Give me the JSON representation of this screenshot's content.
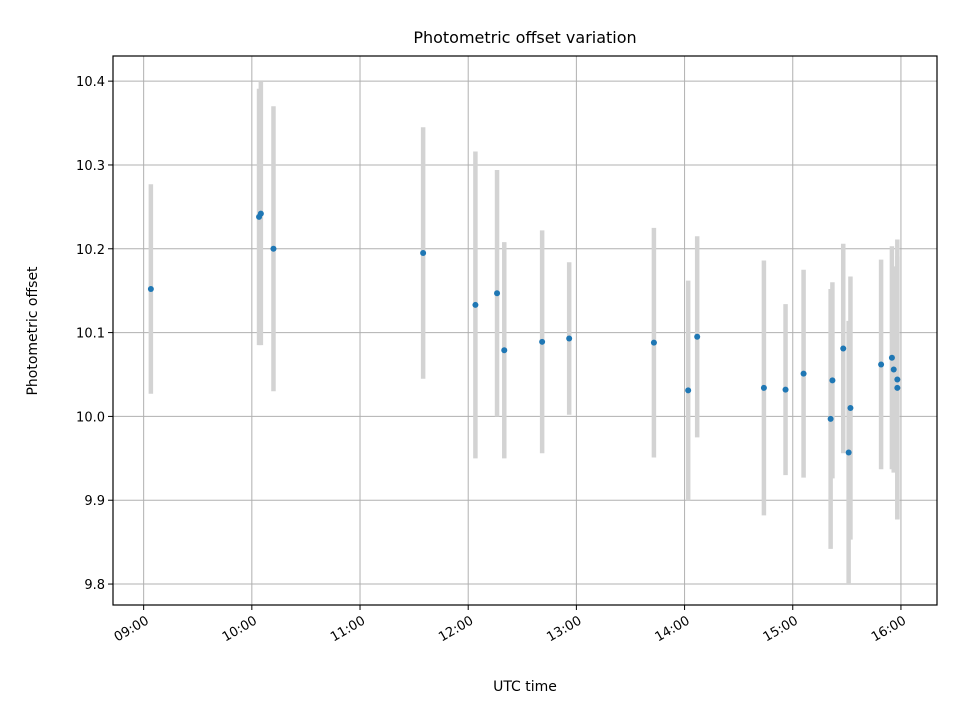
{
  "chart_data": {
    "type": "scatter",
    "title": "Photometric offset variation",
    "xlabel": "UTC time",
    "ylabel": "Photometric offset",
    "x_ticks": [
      "09:00",
      "10:00",
      "11:00",
      "12:00",
      "13:00",
      "14:00",
      "15:00",
      "16:00"
    ],
    "y_ticks": [
      "9.8",
      "9.9",
      "10.0",
      "10.1",
      "10.2",
      "10.3",
      "10.4"
    ],
    "xlim": [
      "08:43",
      "16:20"
    ],
    "ylim": [
      9.775,
      10.43
    ],
    "grid": true,
    "colors": {
      "marker": "#1f77b4",
      "errorbar": "#d3d3d3",
      "grid": "#b0b0b0"
    },
    "points": [
      {
        "x": "09:04",
        "y": 10.152,
        "yerr_low": 0.125,
        "yerr_high": 0.125
      },
      {
        "x": "10:04",
        "y": 10.238,
        "yerr_low": 0.153,
        "yerr_high": 0.153
      },
      {
        "x": "10:05",
        "y": 10.242,
        "yerr_low": 0.157,
        "yerr_high": 0.157
      },
      {
        "x": "10:12",
        "y": 10.2,
        "yerr_low": 0.17,
        "yerr_high": 0.17
      },
      {
        "x": "11:35",
        "y": 10.195,
        "yerr_low": 0.15,
        "yerr_high": 0.15
      },
      {
        "x": "12:04",
        "y": 10.133,
        "yerr_low": 0.183,
        "yerr_high": 0.183
      },
      {
        "x": "12:16",
        "y": 10.147,
        "yerr_low": 0.147,
        "yerr_high": 0.147
      },
      {
        "x": "12:20",
        "y": 10.079,
        "yerr_low": 0.129,
        "yerr_high": 0.129
      },
      {
        "x": "12:41",
        "y": 10.089,
        "yerr_low": 0.133,
        "yerr_high": 0.133
      },
      {
        "x": "12:56",
        "y": 10.093,
        "yerr_low": 0.091,
        "yerr_high": 0.091
      },
      {
        "x": "13:43",
        "y": 10.088,
        "yerr_low": 0.137,
        "yerr_high": 0.137
      },
      {
        "x": "14:02",
        "y": 10.031,
        "yerr_low": 0.131,
        "yerr_high": 0.131
      },
      {
        "x": "14:07",
        "y": 10.095,
        "yerr_low": 0.12,
        "yerr_high": 0.12
      },
      {
        "x": "14:44",
        "y": 10.034,
        "yerr_low": 0.152,
        "yerr_high": 0.152
      },
      {
        "x": "14:56",
        "y": 10.032,
        "yerr_low": 0.102,
        "yerr_high": 0.102
      },
      {
        "x": "15:06",
        "y": 10.051,
        "yerr_low": 0.124,
        "yerr_high": 0.124
      },
      {
        "x": "15:21",
        "y": 9.997,
        "yerr_low": 0.155,
        "yerr_high": 0.155
      },
      {
        "x": "15:22",
        "y": 10.043,
        "yerr_low": 0.117,
        "yerr_high": 0.117
      },
      {
        "x": "15:28",
        "y": 10.081,
        "yerr_low": 0.125,
        "yerr_high": 0.125
      },
      {
        "x": "15:31",
        "y": 9.957,
        "yerr_low": 0.157,
        "yerr_high": 0.157
      },
      {
        "x": "15:32",
        "y": 10.01,
        "yerr_low": 0.157,
        "yerr_high": 0.157
      },
      {
        "x": "15:49",
        "y": 10.062,
        "yerr_low": 0.125,
        "yerr_high": 0.125
      },
      {
        "x": "15:55",
        "y": 10.07,
        "yerr_low": 0.133,
        "yerr_high": 0.133
      },
      {
        "x": "15:56",
        "y": 10.056,
        "yerr_low": 0.123,
        "yerr_high": 0.123
      },
      {
        "x": "15:58",
        "y": 10.044,
        "yerr_low": 0.167,
        "yerr_high": 0.167
      },
      {
        "x": "15:58",
        "y": 10.034,
        "yerr_low": 0.157,
        "yerr_high": 0.157
      }
    ]
  }
}
